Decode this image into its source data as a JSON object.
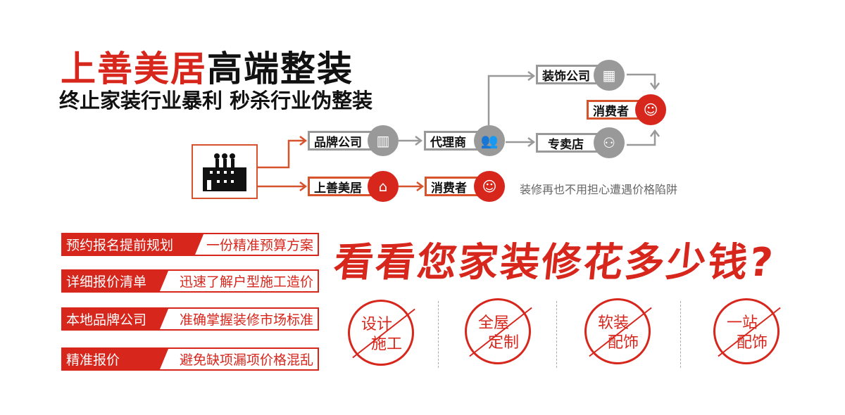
{
  "header": {
    "brand": "上善美居",
    "title_suffix": "高端整装",
    "subtitle": "终止家装行业暴利  秒杀行业伪整装"
  },
  "flow": {
    "brand_company": "品牌公司",
    "agent": "代理商",
    "decoration_company": "装饰公司",
    "consumer_top": "消费者",
    "store": "专卖店",
    "shanshan": "上善美居",
    "consumer_bottom": "消费者",
    "note": "装修再也不用担心遭遇价格陷阱",
    "colors": {
      "accent": "#d7261c",
      "gray": "#999999",
      "line_orange": "#d6532c"
    }
  },
  "features": [
    {
      "label": "预约报名提前规划",
      "desc": "一份精准预算方案"
    },
    {
      "label": "详细报价清单",
      "desc": "迅速了解户型施工造价"
    },
    {
      "label": "本地品牌公司",
      "desc": "准确掌握装修市场标准"
    },
    {
      "label": "精准报价",
      "desc": "避免缺项漏项价格混乱"
    }
  ],
  "headline": "看看您家装修花多少钱?",
  "badges": [
    {
      "top": "设计",
      "bottom": "施工"
    },
    {
      "top": "全屋",
      "bottom": "定制"
    },
    {
      "top": "软装",
      "bottom": "配饰"
    },
    {
      "top": "一站",
      "bottom": "配饰"
    }
  ]
}
